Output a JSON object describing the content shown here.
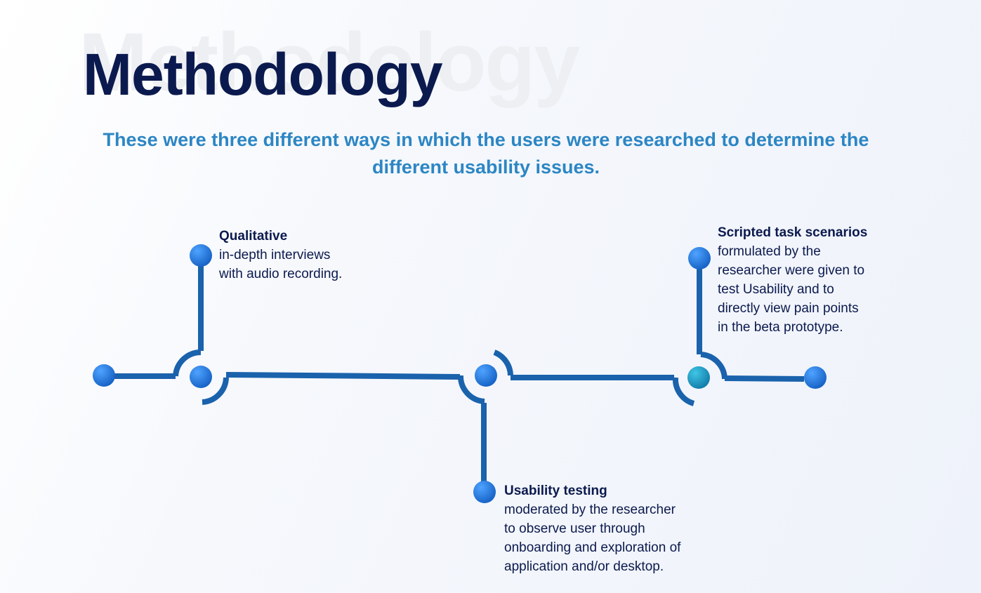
{
  "header": {
    "title": "Methodology",
    "subtitle": "These were three different ways in which the users were researched to determine the different usability issues."
  },
  "steps": [
    {
      "heading": "Qualitative",
      "text": " in-depth interviews\nwith audio recording."
    },
    {
      "heading": "Usability testing",
      "text": "moderated by the researcher\nto observe user through\nonboarding and exploration of\napplication and/or desktop."
    },
    {
      "heading": "Scripted task scenarios",
      "text": "formulated by the\nresearcher were given to\ntest Usability and to\ndirectly view pain points\n in the beta prototype."
    }
  ],
  "colors": {
    "title": "#0b1a4e",
    "subtitle": "#2c86c4",
    "line": "#1a62ac",
    "node": "#1e7fe0",
    "node_teal": "#1aa3c8"
  }
}
